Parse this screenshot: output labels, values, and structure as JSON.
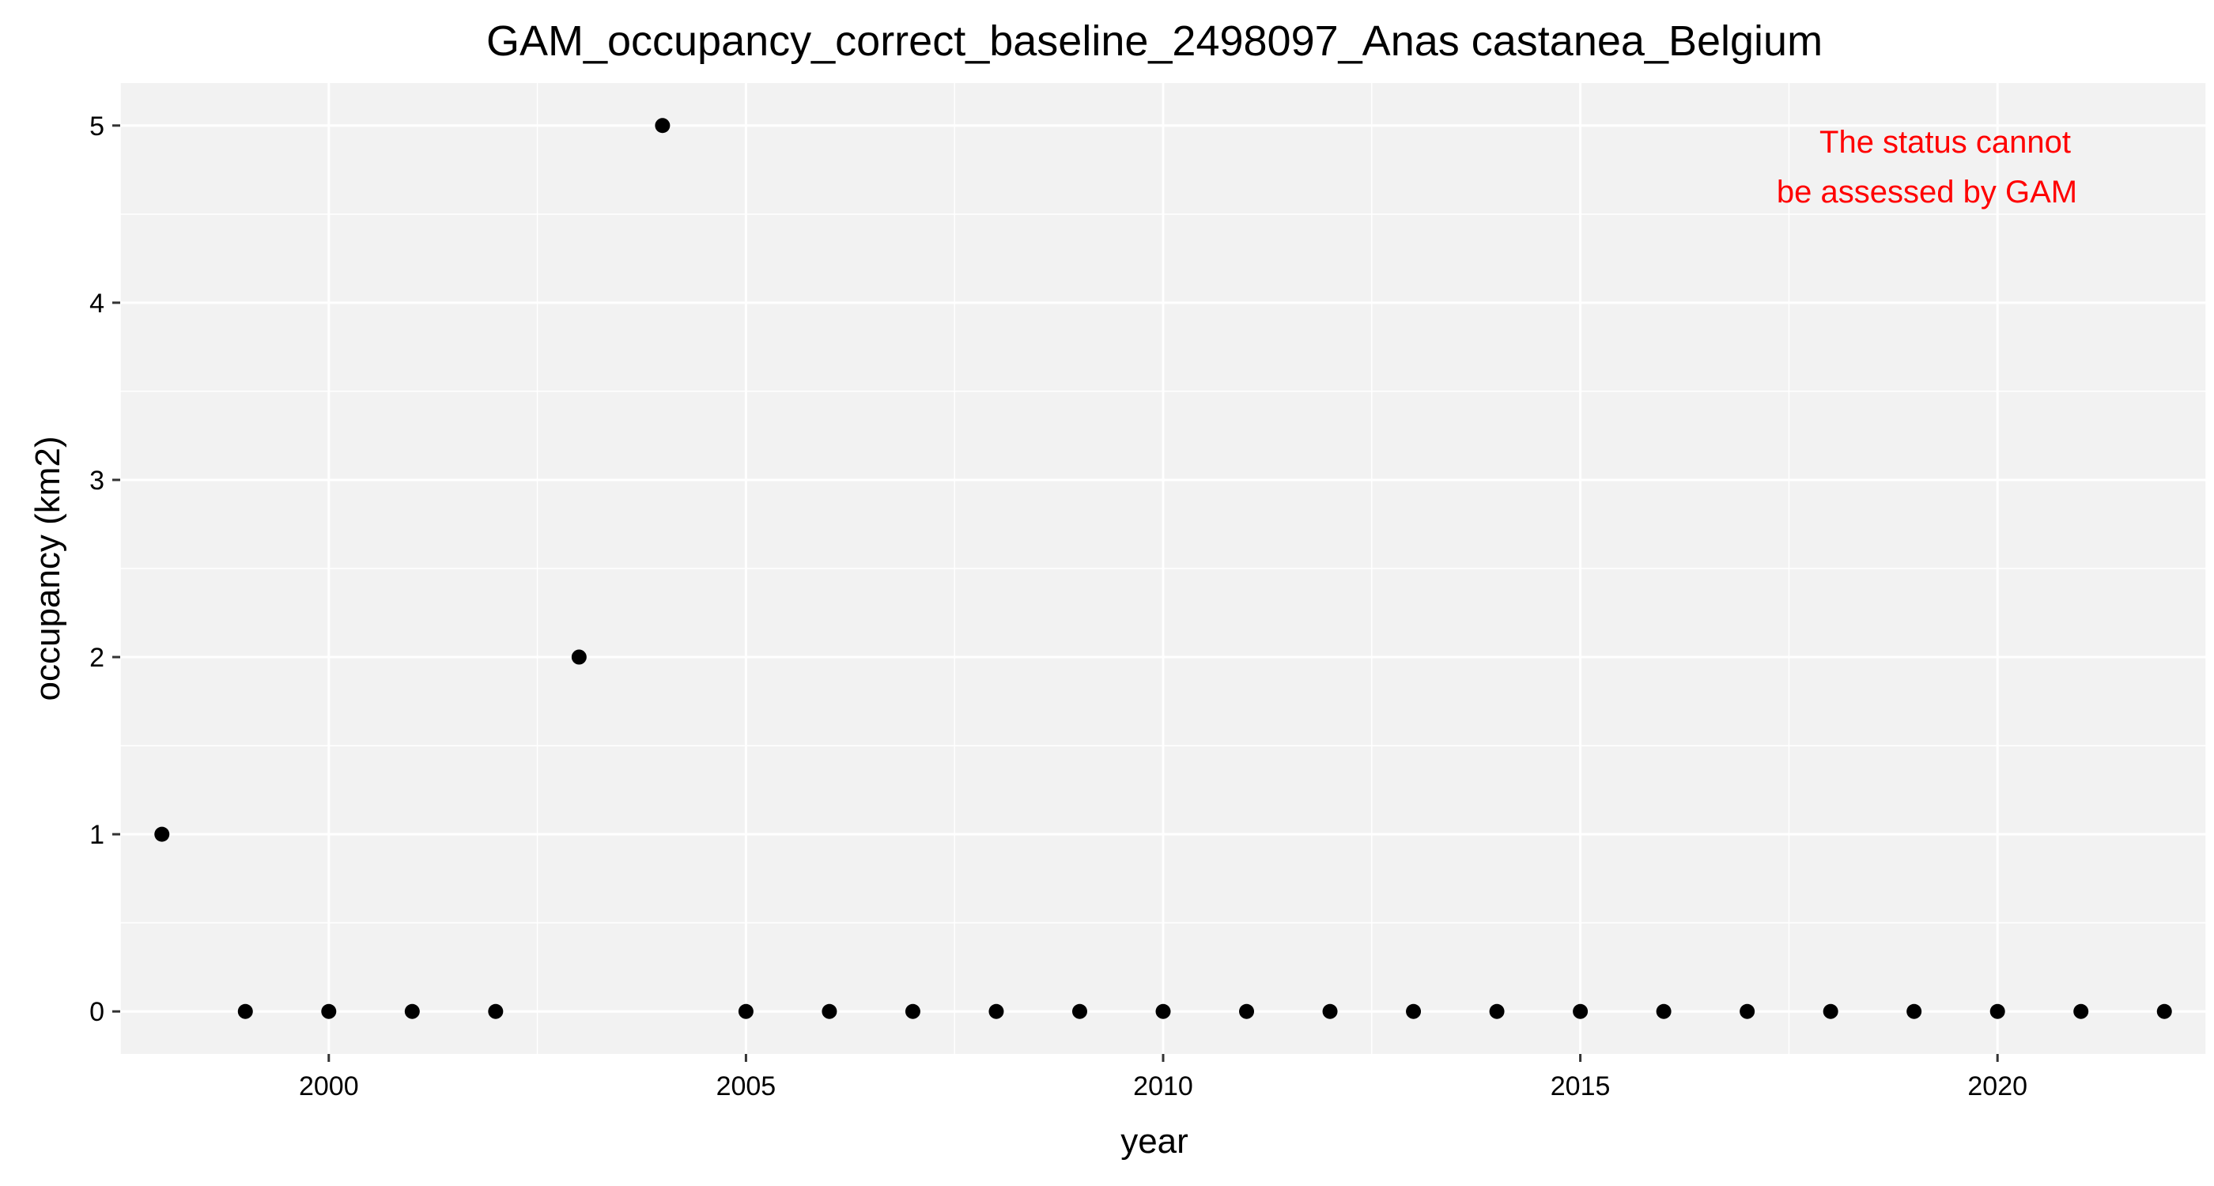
{
  "chart_data": {
    "type": "scatter",
    "title": "GAM_occupancy_correct_baseline_2498097_Anas castanea_Belgium",
    "xlabel": "year",
    "ylabel": "occupancy (km2)",
    "xlim": [
      1997.5,
      2022.5
    ],
    "ylim": [
      -0.24,
      5.24
    ],
    "x_ticks": [
      2000,
      2005,
      2010,
      2015,
      2020
    ],
    "x_tick_labels": [
      "2000",
      "2005",
      "2010",
      "2015",
      "2020"
    ],
    "y_ticks": [
      0,
      1,
      2,
      3,
      4,
      5
    ],
    "y_tick_labels": [
      "0",
      "1",
      "2",
      "3",
      "4",
      "5"
    ],
    "grid": true,
    "legend": "none",
    "point_color": "#000000",
    "panel_background": "#f2f2f2",
    "gridline_color": "#ffffff",
    "points": [
      {
        "x": 1998,
        "y": 1
      },
      {
        "x": 1999,
        "y": 0
      },
      {
        "x": 2000,
        "y": 0
      },
      {
        "x": 2001,
        "y": 0
      },
      {
        "x": 2002,
        "y": 0
      },
      {
        "x": 2003,
        "y": 2
      },
      {
        "x": 2004,
        "y": 5
      },
      {
        "x": 2005,
        "y": 0
      },
      {
        "x": 2006,
        "y": 0
      },
      {
        "x": 2007,
        "y": 0
      },
      {
        "x": 2008,
        "y": 0
      },
      {
        "x": 2009,
        "y": 0
      },
      {
        "x": 2010,
        "y": 0
      },
      {
        "x": 2011,
        "y": 0
      },
      {
        "x": 2012,
        "y": 0
      },
      {
        "x": 2013,
        "y": 0
      },
      {
        "x": 2014,
        "y": 0
      },
      {
        "x": 2015,
        "y": 0
      },
      {
        "x": 2016,
        "y": 0
      },
      {
        "x": 2017,
        "y": 0
      },
      {
        "x": 2018,
        "y": 0
      },
      {
        "x": 2019,
        "y": 0
      },
      {
        "x": 2020,
        "y": 0
      },
      {
        "x": 2021,
        "y": 0
      },
      {
        "x": 2022,
        "y": 0
      }
    ],
    "annotation": {
      "lines": [
        "The status cannot",
        "be assessed by GAM"
      ],
      "color": "#ff0000"
    }
  }
}
